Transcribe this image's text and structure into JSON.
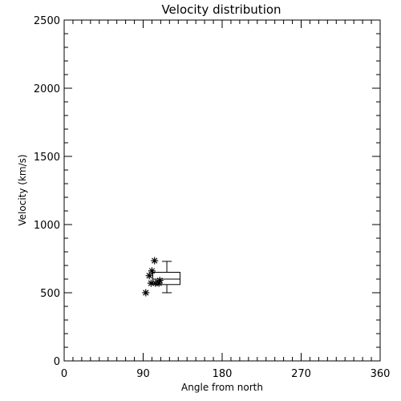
{
  "chart_data": {
    "type": "scatter",
    "title": "Velocity distribution",
    "xlabel": "Angle from north",
    "ylabel": "Velocity (km/s)",
    "xlim": [
      0,
      360
    ],
    "ylim": [
      0,
      2500
    ],
    "xticks": [
      0,
      90,
      180,
      270,
      360
    ],
    "yticks": [
      0,
      500,
      1000,
      1500,
      2000,
      2500
    ],
    "x_minor_step": 10,
    "y_minor_step": 100,
    "grid": false,
    "series": [
      {
        "marker": "asterisk",
        "points": [
          {
            "x": 93,
            "y": 500
          },
          {
            "x": 97,
            "y": 625
          },
          {
            "x": 100,
            "y": 660
          },
          {
            "x": 99,
            "y": 570
          },
          {
            "x": 103,
            "y": 735
          },
          {
            "x": 104,
            "y": 570
          },
          {
            "x": 108,
            "y": 570
          },
          {
            "x": 109,
            "y": 590
          }
        ]
      }
    ],
    "boxplot": {
      "x_left": 101,
      "x_right": 132,
      "whisker_x": 117,
      "min": 500,
      "q1": 560,
      "median": 600,
      "q3": 650,
      "max": 730
    }
  }
}
